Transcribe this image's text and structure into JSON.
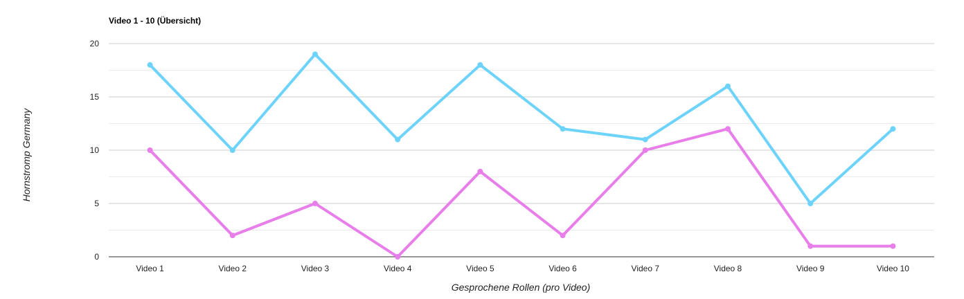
{
  "chart_data": {
    "type": "line",
    "title": "Video 1 - 10 (Übersicht)",
    "xlabel": "Gesprochene Rollen (pro Video)",
    "ylabel": "Hornstromp Germany",
    "categories": [
      "Video 1",
      "Video 2",
      "Video 3",
      "Video 4",
      "Video 5",
      "Video 6",
      "Video 7",
      "Video 8",
      "Video 9",
      "Video 10"
    ],
    "ylim": [
      0,
      20
    ],
    "yticks": [
      "0",
      "5",
      "10",
      "15",
      "20"
    ],
    "grid": true,
    "legend": "none",
    "series": [
      {
        "color": "#6dd3fb",
        "values": [
          18,
          10,
          19,
          11,
          18,
          12,
          11,
          16,
          5,
          12
        ]
      },
      {
        "color": "#e87ee9",
        "values": [
          10,
          2,
          5,
          0,
          8,
          2,
          10,
          12,
          1,
          1
        ]
      }
    ]
  }
}
